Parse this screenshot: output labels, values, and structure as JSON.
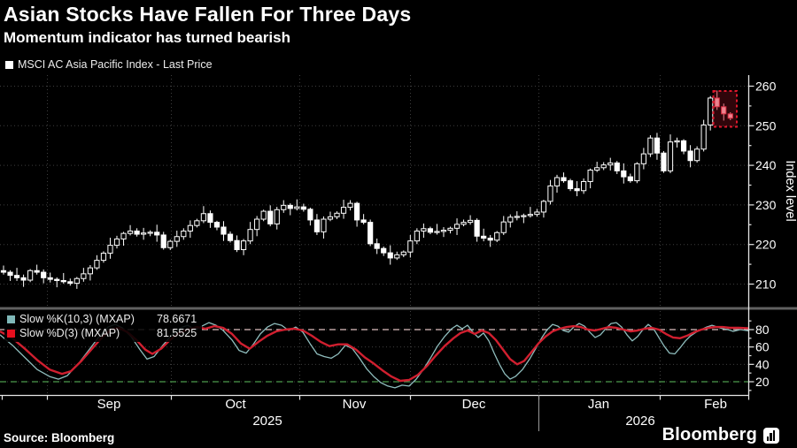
{
  "header": {
    "title": "Asian Stocks Have Fallen For Three Days",
    "subtitle": "Momentum indicator has turned bearish"
  },
  "main_legend": {
    "label": "MSCI AC Asia Pacific Index - Last Price"
  },
  "lower_legend": {
    "k_label": "Slow %K(10,3) (MXAP)",
    "k_value": "78.6671",
    "d_label": "Slow %D(3) (MXAP)",
    "d_value": "81.5525"
  },
  "footer": {
    "source": "Source: Bloomberg",
    "brand": "Bloomberg"
  },
  "colors": {
    "background": "#000000",
    "text": "#ffffff",
    "grid": "#3e3e3e",
    "axis": "#e6e6e6",
    "candle": "#ffffff",
    "k_line": "#8fbdbd",
    "k_swatch": "#7fb8b8",
    "d_line": "#d01f2f",
    "d_swatch": "#e60f1e",
    "upper_threshold_dash": "#dfc0c0",
    "lower_threshold_dash": "#4e9b4e",
    "highlight_box": "#e0182d",
    "falling_candle": "#f2a3ab",
    "falling_candle_edge": "#e0374a",
    "separator": "#606060"
  },
  "chart_data": [
    {
      "type": "candlestick",
      "title": "MSCI AC Asia Pacific Index - Last Price",
      "ylabel": "Index level",
      "ylim": [
        207,
        262.5
      ],
      "yticks": [
        210,
        220,
        230,
        240,
        250,
        260
      ],
      "grid": true,
      "closes": [
        213.0,
        212.2,
        211.6,
        211.0,
        213.4,
        213.0,
        211.6,
        211.2,
        210.9,
        210.6,
        210.2,
        211.4,
        212.6,
        214.1,
        216.0,
        217.8,
        219.8,
        221.4,
        222.8,
        223.4,
        222.6,
        222.9,
        223.1,
        222.4,
        219.2,
        220.8,
        222.0,
        223.4,
        224.8,
        226.0,
        227.8,
        225.6,
        224.4,
        222.6,
        221.0,
        218.7,
        220.9,
        223.8,
        226.4,
        228.4,
        225.2,
        228.8,
        229.9,
        229.1,
        229.5,
        228.9,
        226.2,
        223.2,
        226.4,
        227.0,
        227.9,
        229.4,
        230.4,
        226.2,
        225.6,
        220.2,
        219.0,
        217.9,
        216.6,
        217.4,
        218.1,
        220.9,
        223.4,
        224.0,
        223.1,
        223.3,
        223.6,
        224.1,
        225.1,
        225.6,
        226.1,
        222.1,
        221.6,
        221.1,
        223.0,
        225.7,
        226.9,
        227.1,
        227.3,
        227.6,
        228.2,
        230.9,
        234.8,
        236.9,
        236.1,
        234.1,
        233.6,
        235.9,
        238.8,
        239.4,
        240.1,
        240.6,
        238.6,
        237.1,
        236.1,
        240.4,
        242.9,
        246.9,
        243.1,
        238.6,
        245.9,
        246.2,
        243.6,
        241.2,
        244.1,
        250.2,
        257.0,
        254.8,
        253.0,
        251.9
      ],
      "highlight": {
        "note": "last three falling days",
        "count": 3
      }
    },
    {
      "type": "line",
      "yticks": [
        20,
        40,
        60,
        80
      ],
      "ylim": [
        5,
        95
      ],
      "thresholds": {
        "upper": 80,
        "lower": 20
      },
      "series": [
        {
          "name": "Slow %K(10,3) (MXAP)",
          "last": 78.6671,
          "points": [
            [
              0,
              74
            ],
            [
              14,
              62
            ],
            [
              28,
              48
            ],
            [
              42,
              34
            ],
            [
              56,
              26
            ],
            [
              66,
              23
            ],
            [
              76,
              27
            ],
            [
              88,
              40
            ],
            [
              100,
              56
            ],
            [
              112,
              72
            ],
            [
              122,
              83
            ],
            [
              130,
              86
            ],
            [
              138,
              82
            ],
            [
              148,
              72
            ],
            [
              158,
              57
            ],
            [
              166,
              46
            ],
            [
              174,
              49
            ],
            [
              184,
              62
            ],
            [
              194,
              74
            ],
            [
              204,
              82
            ],
            [
              212,
              85
            ],
            [
              220,
              80
            ],
            [
              228,
              84
            ],
            [
              236,
              88
            ],
            [
              244,
              85
            ],
            [
              252,
              79
            ],
            [
              262,
              68
            ],
            [
              270,
              56
            ],
            [
              278,
              53
            ],
            [
              286,
              63
            ],
            [
              294,
              75
            ],
            [
              302,
              83
            ],
            [
              310,
              87
            ],
            [
              318,
              85
            ],
            [
              326,
              79
            ],
            [
              334,
              83
            ],
            [
              342,
              77
            ],
            [
              350,
              64
            ],
            [
              358,
              52
            ],
            [
              366,
              49
            ],
            [
              374,
              47
            ],
            [
              382,
              52
            ],
            [
              390,
              62
            ],
            [
              398,
              58
            ],
            [
              406,
              47
            ],
            [
              414,
              35
            ],
            [
              422,
              26
            ],
            [
              430,
              19
            ],
            [
              438,
              15
            ],
            [
              446,
              13
            ],
            [
              454,
              16
            ],
            [
              462,
              15
            ],
            [
              470,
              23
            ],
            [
              478,
              34
            ],
            [
              486,
              47
            ],
            [
              494,
              61
            ],
            [
              502,
              72
            ],
            [
              510,
              81
            ],
            [
              516,
              85
            ],
            [
              522,
              81
            ],
            [
              528,
              85
            ],
            [
              534,
              77
            ],
            [
              540,
              71
            ],
            [
              546,
              76
            ],
            [
              552,
              67
            ],
            [
              558,
              53
            ],
            [
              564,
              40
            ],
            [
              570,
              29
            ],
            [
              576,
              23
            ],
            [
              582,
              26
            ],
            [
              590,
              34
            ],
            [
              598,
              46
            ],
            [
              606,
              60
            ],
            [
              612,
              71
            ],
            [
              618,
              80
            ],
            [
              624,
              86
            ],
            [
              630,
              84
            ],
            [
              636,
              79
            ],
            [
              642,
              77
            ],
            [
              648,
              83
            ],
            [
              654,
              87
            ],
            [
              660,
              84
            ],
            [
              666,
              77
            ],
            [
              672,
              71
            ],
            [
              678,
              74
            ],
            [
              684,
              81
            ],
            [
              690,
              87
            ],
            [
              696,
              88
            ],
            [
              702,
              83
            ],
            [
              708,
              74
            ],
            [
              714,
              67
            ],
            [
              720,
              72
            ],
            [
              726,
              80
            ],
            [
              732,
              86
            ],
            [
              738,
              81
            ],
            [
              744,
              71
            ],
            [
              750,
              61
            ],
            [
              756,
              53
            ],
            [
              762,
              52
            ],
            [
              768,
              59
            ],
            [
              774,
              67
            ],
            [
              780,
              73
            ],
            [
              786,
              77
            ],
            [
              792,
              80
            ],
            [
              798,
              83
            ],
            [
              804,
              85
            ],
            [
              810,
              83
            ],
            [
              816,
              81
            ],
            [
              822,
              80
            ],
            [
              828,
              78
            ],
            [
              836,
              80
            ],
            [
              845,
              78.7
            ]
          ]
        },
        {
          "name": "Slow %D(3) (MXAP)",
          "last": 81.5525,
          "points": [
            [
              0,
              78
            ],
            [
              14,
              70
            ],
            [
              28,
              58
            ],
            [
              42,
              45
            ],
            [
              56,
              34
            ],
            [
              70,
              29
            ],
            [
              80,
              32
            ],
            [
              92,
              44
            ],
            [
              104,
              58
            ],
            [
              116,
              72
            ],
            [
              126,
              80
            ],
            [
              134,
              82
            ],
            [
              144,
              77
            ],
            [
              154,
              68
            ],
            [
              164,
              57
            ],
            [
              172,
              52
            ],
            [
              182,
              58
            ],
            [
              192,
              68
            ],
            [
              202,
              76
            ],
            [
              212,
              80
            ],
            [
              222,
              83
            ],
            [
              232,
              81
            ],
            [
              242,
              84
            ],
            [
              252,
              82
            ],
            [
              262,
              75
            ],
            [
              272,
              64
            ],
            [
              282,
              58
            ],
            [
              292,
              66
            ],
            [
              302,
              73
            ],
            [
              312,
              78
            ],
            [
              322,
              80
            ],
            [
              332,
              81
            ],
            [
              342,
              79
            ],
            [
              352,
              73
            ],
            [
              362,
              66
            ],
            [
              372,
              61
            ],
            [
              382,
              63
            ],
            [
              392,
              63
            ],
            [
              402,
              57
            ],
            [
              412,
              48
            ],
            [
              422,
              41
            ],
            [
              432,
              33
            ],
            [
              442,
              26
            ],
            [
              452,
              21
            ],
            [
              462,
              22
            ],
            [
              472,
              28
            ],
            [
              482,
              38
            ],
            [
              492,
              50
            ],
            [
              502,
              61
            ],
            [
              512,
              70
            ],
            [
              520,
              76
            ],
            [
              528,
              79
            ],
            [
              536,
              75
            ],
            [
              544,
              79
            ],
            [
              552,
              76
            ],
            [
              560,
              68
            ],
            [
              568,
              57
            ],
            [
              576,
              46
            ],
            [
              584,
              40
            ],
            [
              592,
              44
            ],
            [
              600,
              54
            ],
            [
              608,
              64
            ],
            [
              616,
              72
            ],
            [
              624,
              78
            ],
            [
              632,
              81
            ],
            [
              640,
              83
            ],
            [
              648,
              84
            ],
            [
              656,
              83
            ],
            [
              664,
              80
            ],
            [
              672,
              79
            ],
            [
              680,
              81
            ],
            [
              688,
              83
            ],
            [
              696,
              82
            ],
            [
              704,
              80
            ],
            [
              712,
              78
            ],
            [
              720,
              79
            ],
            [
              728,
              81
            ],
            [
              736,
              82
            ],
            [
              744,
              80
            ],
            [
              752,
              75
            ],
            [
              760,
              71
            ],
            [
              768,
              70
            ],
            [
              776,
              73
            ],
            [
              784,
              77
            ],
            [
              792,
              80
            ],
            [
              800,
              82
            ],
            [
              808,
              83
            ],
            [
              816,
              83
            ],
            [
              824,
              82
            ],
            [
              834,
              82
            ],
            [
              845,
              81.6
            ]
          ]
        }
      ]
    }
  ],
  "x_axis": {
    "boundaries": [
      53,
      193,
      338,
      463,
      608,
      745
    ],
    "edge_ticks": [
      2,
      845
    ],
    "months": [
      {
        "label": "Sep",
        "x": 123
      },
      {
        "label": "Oct",
        "x": 266
      },
      {
        "label": "Nov",
        "x": 400
      },
      {
        "label": "Dec",
        "x": 535
      },
      {
        "label": "Jan",
        "x": 676
      },
      {
        "label": "Feb",
        "x": 808
      }
    ],
    "years": [
      {
        "label": "2025",
        "x": 302
      },
      {
        "label": "2026",
        "x": 723
      }
    ],
    "year_divider_x": 608
  }
}
